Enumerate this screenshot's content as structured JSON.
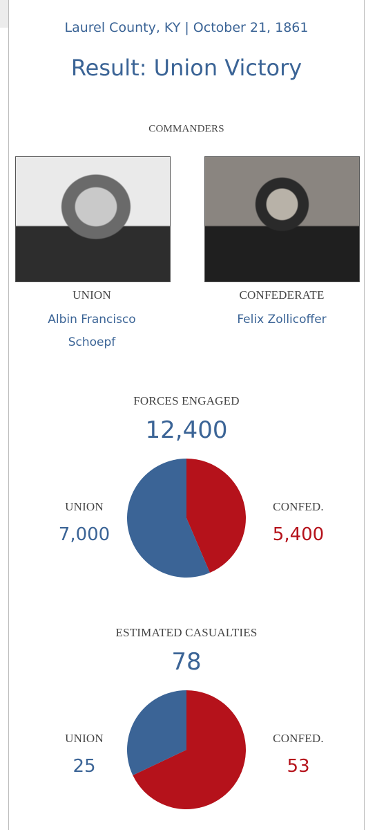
{
  "header": {
    "location": "Laurel County, KY | October 21, 1861",
    "result": "Result: Union Victory"
  },
  "commanders": {
    "title": "COMMANDERS",
    "items": [
      {
        "side": "UNION",
        "name": "Albin Francisco Schoepf"
      },
      {
        "side": "CONFEDERATE",
        "name": "Felix Zollicoffer"
      }
    ]
  },
  "chart_data": [
    {
      "type": "pie",
      "title": "FORCES ENGAGED",
      "total": {
        "value": 12400,
        "label": "12,400"
      },
      "categories": [
        "UNION",
        "CONFED."
      ],
      "values": [
        7000,
        5400
      ],
      "value_labels": [
        "7,000",
        "5,400"
      ],
      "colors": [
        "#3b6496",
        "#b5121b"
      ]
    },
    {
      "type": "pie",
      "title": "ESTIMATED CASUALTIES",
      "total": 78,
      "categories": [
        "UNION",
        "CONFED."
      ],
      "values": [
        25,
        53
      ],
      "colors": [
        "#3b6496",
        "#b5121b"
      ]
    }
  ]
}
